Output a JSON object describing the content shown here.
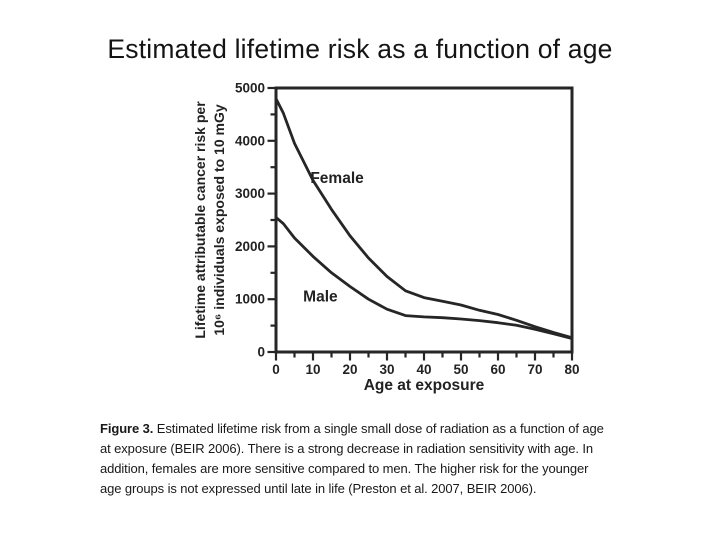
{
  "slide": {
    "title": "Estimated lifetime risk as a function of age"
  },
  "chart_data": {
    "type": "line",
    "title": "",
    "xlabel": "Age at exposure",
    "ylabel": [
      "Lifetime attributable cancer risk per",
      "10⁶ individuals exposed to 10 mGy"
    ],
    "xlim": [
      0,
      80
    ],
    "ylim": [
      0,
      5000
    ],
    "x_major_ticks": [
      0,
      10,
      20,
      30,
      40,
      50,
      60,
      70,
      80
    ],
    "x_minor_step": 5,
    "y_major_ticks": [
      0,
      1000,
      2000,
      3000,
      4000,
      5000
    ],
    "y_minor_step": 500,
    "grid": false,
    "frame": true,
    "legend_position": "inline-labels",
    "line_color": "#262626",
    "x": [
      0,
      2,
      5,
      10,
      15,
      20,
      25,
      30,
      35,
      40,
      45,
      50,
      55,
      60,
      65,
      70,
      75,
      80
    ],
    "series": [
      {
        "name": "Female",
        "values": [
          4800,
          4520,
          3950,
          3250,
          2700,
          2200,
          1780,
          1430,
          1160,
          1030,
          960,
          890,
          790,
          710,
          600,
          480,
          370,
          270
        ],
        "label_pos": {
          "x": 16.5,
          "y": 3300
        }
      },
      {
        "name": "Male",
        "values": [
          2550,
          2430,
          2160,
          1810,
          1500,
          1240,
          1000,
          810,
          690,
          665,
          650,
          625,
          595,
          555,
          505,
          430,
          345,
          255
        ],
        "label_pos": {
          "x": 12,
          "y": 1050
        }
      }
    ]
  },
  "caption": {
    "label": "Figure 3.",
    "lines": [
      "Estimated lifetime risk from a single small dose of radiation as a function of age",
      "at exposure (BEIR 2006). There is a strong decrease in radiation sensitivity with age. In",
      "addition, females are more sensitive compared to men. The higher risk for the younger",
      "age groups is not expressed until late in life (Preston et al. 2007, BEIR 2006)."
    ]
  }
}
